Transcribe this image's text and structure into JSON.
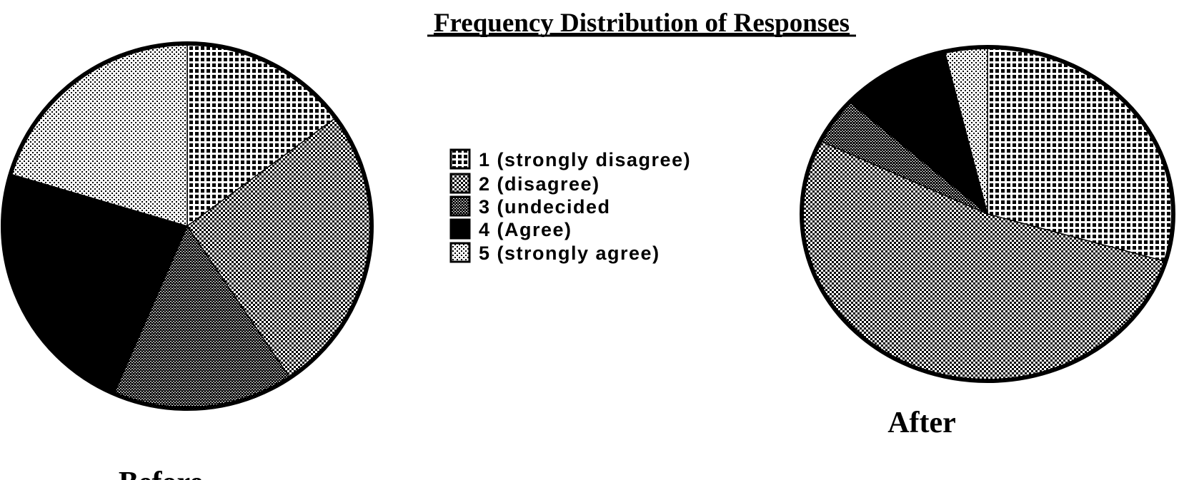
{
  "chart_data": {
    "type": "pie",
    "title": "Frequency Distribution of Responses",
    "legend_position": "center",
    "categories": [
      "1 (strongly disagree)",
      "2 (disagree)",
      "3 (undecided",
      "4 (Agree)",
      "5 (strongly agree)"
    ],
    "category_patterns": [
      "large-dot-grid",
      "light-diamond",
      "dense-dark",
      "solid-black",
      "light-dots"
    ],
    "charts": [
      {
        "label": "Before",
        "values_percent": [
          14.9,
          25.7,
          15.9,
          23.1,
          20.4
        ]
      },
      {
        "label": "After",
        "values_percent": [
          29.6,
          52.6,
          4.5,
          9.6,
          3.7
        ]
      }
    ],
    "start_angle": "12 o'clock",
    "direction": "clockwise"
  }
}
